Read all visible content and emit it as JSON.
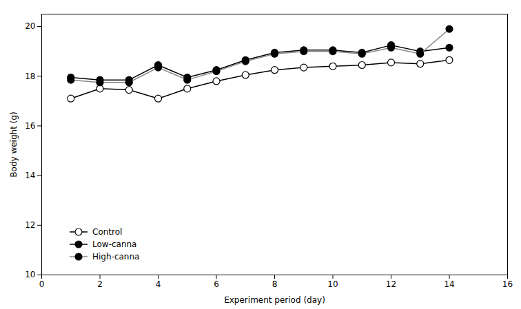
{
  "chart_data": {
    "type": "line",
    "x": [
      1,
      2,
      3,
      4,
      5,
      6,
      7,
      8,
      9,
      10,
      11,
      12,
      13,
      14
    ],
    "series": [
      {
        "name": "Control",
        "color": "#000000",
        "marker": "open_circle",
        "values": [
          17.1,
          17.5,
          17.45,
          17.1,
          17.5,
          17.8,
          18.05,
          18.25,
          18.35,
          18.4,
          18.45,
          18.55,
          18.5,
          18.65
        ],
        "errors": [
          0.12,
          0.1,
          0.1,
          0.1,
          0.1,
          0.1,
          0.1,
          0.1,
          0.1,
          0.12,
          0.1,
          0.1,
          0.1,
          0.1
        ]
      },
      {
        "name": "Low-canna",
        "color": "#000000",
        "marker": "filled_circle",
        "values": [
          17.95,
          17.85,
          17.85,
          18.45,
          17.95,
          18.25,
          18.65,
          18.95,
          19.05,
          19.05,
          18.95,
          19.25,
          19.0,
          19.15
        ],
        "errors": [
          0.1,
          0.1,
          0.1,
          0.1,
          0.1,
          0.1,
          0.1,
          0.1,
          0.1,
          0.1,
          0.1,
          0.1,
          0.1,
          0.08
        ]
      },
      {
        "name": "High-canna",
        "color": "#888888",
        "marker": "filled_circle",
        "values": [
          17.85,
          17.75,
          17.75,
          18.35,
          17.85,
          18.2,
          18.6,
          18.9,
          19.0,
          19.0,
          18.9,
          19.15,
          18.9,
          19.9
        ],
        "errors": [
          0.1,
          0.1,
          0.1,
          0.1,
          0.1,
          0.1,
          0.1,
          0.1,
          0.1,
          0.1,
          0.1,
          0.1,
          0.1,
          0.06
        ]
      }
    ],
    "xlabel": "Experiment period (day)",
    "ylabel": "Body weight (g)",
    "xlim": [
      0,
      16
    ],
    "ylim": [
      10.0,
      20.5
    ],
    "xticks": [
      0,
      2,
      4,
      6,
      8,
      10,
      12,
      14,
      16
    ],
    "yticks": [
      10,
      12,
      14,
      16,
      18,
      20
    ],
    "legend": "lower left",
    "grid": false
  }
}
